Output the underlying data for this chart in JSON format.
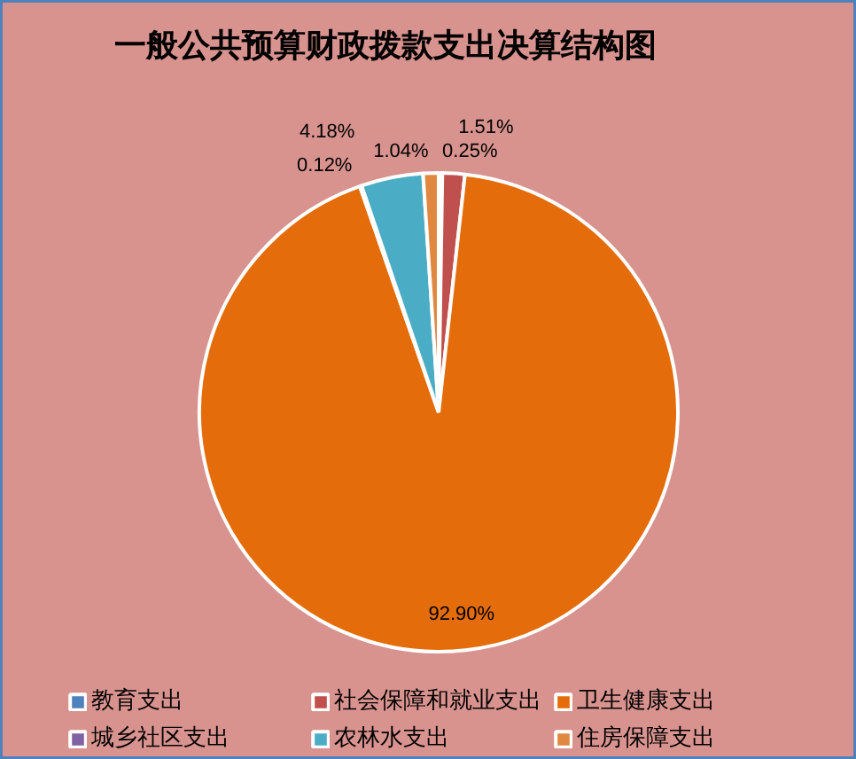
{
  "chart_data": {
    "type": "pie",
    "title": "一般公共预算财政拨款支出决算结构图",
    "categories": [
      "教育支出",
      "社会保障和就业支出",
      "卫生健康支出",
      "城乡社区支出",
      "农林水支出",
      "住房保障支出"
    ],
    "values": [
      0.25,
      1.51,
      92.9,
      0.12,
      4.18,
      1.04
    ],
    "colors": [
      "#4f81bd",
      "#c0504d",
      "#e46c0a",
      "#8064a2",
      "#4bacc6",
      "#e0883f"
    ],
    "value_labels": [
      "0.25%",
      "1.51%",
      "92.90%",
      "0.12%",
      "4.18%",
      "1.04%"
    ],
    "legend": "bottom"
  }
}
